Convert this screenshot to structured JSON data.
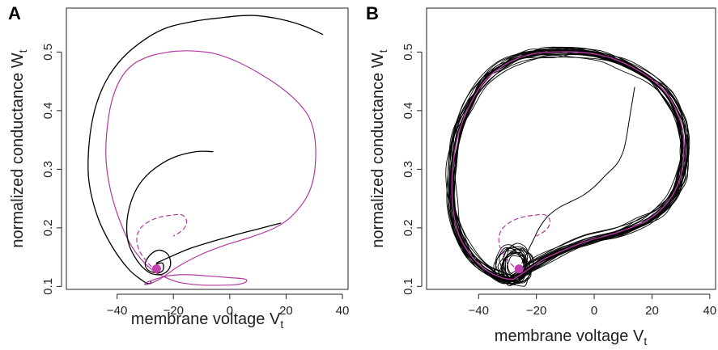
{
  "chart_data": [
    {
      "type": "line",
      "panel_label": "A",
      "xlabel": "membrane voltage V",
      "xlabel_sub": "t",
      "ylabel": "normalized conductance W",
      "ylabel_sub": "t",
      "xlim": [
        -58,
        42
      ],
      "ylim": [
        0.095,
        0.575
      ],
      "xticks": [
        -40,
        -20,
        0,
        20,
        40
      ],
      "yticks": [
        0.1,
        0.2,
        0.3,
        0.4,
        0.5
      ],
      "xtick_labels": [
        "−40",
        "−20",
        "0",
        "20",
        "40"
      ],
      "ytick_labels": [
        "0.1",
        "0.2",
        "0.3",
        "0.4",
        "0.5"
      ],
      "colors": {
        "trajectory": "#000000",
        "limit_cycle": "#b03aa0",
        "fixed_point": "#c040b0"
      },
      "fixed_point": {
        "x": -26,
        "y": 0.13
      },
      "series": [
        {
          "style": "solid",
          "color": "#000000",
          "x": [
            33,
            26,
            18,
            10,
            4,
            -4,
            -12,
            -22,
            -30,
            -38,
            -44,
            -48,
            -50,
            -50,
            -47,
            -42,
            -36,
            -31,
            -29,
            -28,
            -28
          ],
          "y": [
            0.53,
            0.545,
            0.556,
            0.562,
            0.562,
            0.558,
            0.553,
            0.542,
            0.522,
            0.49,
            0.45,
            0.4,
            0.34,
            0.28,
            0.22,
            0.17,
            0.13,
            0.11,
            0.105,
            0.106,
            0.108
          ]
        },
        {
          "style": "solid",
          "color": "#b03aa0",
          "x": [
            -28,
            -24,
            -18,
            -10,
            -2,
            8,
            16,
            22,
            27,
            29.5,
            30.5,
            30,
            28,
            24,
            18,
            10,
            2,
            -6,
            -14,
            -20,
            -24,
            -27,
            -30,
            -34,
            -38,
            -41,
            -43,
            -44,
            -43,
            -40,
            -35,
            -28,
            -20,
            -12,
            -4,
            2,
            5,
            6,
            5,
            0,
            -8,
            -14,
            -18,
            -22,
            -26,
            -29,
            -30,
            -30,
            -28
          ],
          "y": [
            0.105,
            0.115,
            0.135,
            0.155,
            0.17,
            0.185,
            0.2,
            0.22,
            0.25,
            0.28,
            0.32,
            0.36,
            0.39,
            0.415,
            0.44,
            0.465,
            0.485,
            0.498,
            0.502,
            0.501,
            0.498,
            0.495,
            0.49,
            0.48,
            0.46,
            0.43,
            0.39,
            0.33,
            0.28,
            0.225,
            0.17,
            0.13,
            0.11,
            0.103,
            0.102,
            0.103,
            0.106,
            0.11,
            0.113,
            0.115,
            0.118,
            0.12,
            0.12,
            0.118,
            0.113,
            0.108,
            0.105,
            0.103,
            0.105
          ]
        },
        {
          "style": "solid",
          "color": "#000000",
          "x": [
            -6,
            -12,
            -20,
            -27,
            -32,
            -35,
            -36.5,
            -36,
            -33,
            -29,
            -25,
            -22,
            -21,
            -22,
            -25,
            -28,
            -30,
            -29,
            -26,
            -24,
            -23.5,
            -24,
            -26
          ],
          "y": [
            0.33,
            0.33,
            0.32,
            0.3,
            0.275,
            0.245,
            0.21,
            0.175,
            0.145,
            0.125,
            0.12,
            0.127,
            0.14,
            0.155,
            0.162,
            0.155,
            0.14,
            0.128,
            0.123,
            0.126,
            0.133,
            0.14,
            0.138
          ]
        },
        {
          "style": "dashed",
          "color": "#b03aa0",
          "x": [
            -26,
            -29,
            -32,
            -33,
            -32,
            -29,
            -25,
            -20,
            -17,
            -15.5,
            -15.5,
            -17,
            -20
          ],
          "y": [
            0.125,
            0.14,
            0.16,
            0.18,
            0.197,
            0.21,
            0.218,
            0.222,
            0.222,
            0.215,
            0.205,
            0.195,
            0.186
          ]
        },
        {
          "style": "solid",
          "color": "#000000",
          "x": [
            -26,
            -20,
            -14,
            -6,
            2,
            10,
            18
          ],
          "y": [
            0.14,
            0.153,
            0.165,
            0.177,
            0.188,
            0.198,
            0.208
          ]
        }
      ]
    },
    {
      "type": "line",
      "panel_label": "B",
      "xlabel": "membrane voltage V",
      "xlabel_sub": "t",
      "ylabel": "normalized conductance W",
      "ylabel_sub": "t",
      "xlim": [
        -58,
        42
      ],
      "ylim": [
        0.095,
        0.575
      ],
      "xticks": [
        -40,
        -20,
        0,
        20,
        40
      ],
      "yticks": [
        0.1,
        0.2,
        0.3,
        0.4,
        0.5
      ],
      "xtick_labels": [
        "−40",
        "−20",
        "0",
        "20",
        "40"
      ],
      "ytick_labels": [
        "0.1",
        "0.2",
        "0.3",
        "0.4",
        "0.5"
      ],
      "colors": {
        "trajectory": "#000000",
        "limit_cycle": "#b03aa0",
        "fixed_point": "#c040b0"
      },
      "fixed_point": {
        "x": -26,
        "y": 0.13
      },
      "noisy_cycles": 24,
      "limit_cycle": {
        "x": [
          -28,
          -24,
          -18,
          -10,
          -2,
          8,
          16,
          22,
          27,
          30,
          31,
          30.5,
          28,
          24,
          18,
          10,
          2,
          -6,
          -14,
          -20,
          -26,
          -32,
          -38,
          -43,
          -47,
          -49,
          -49,
          -47,
          -43,
          -38,
          -32,
          -28
        ],
        "y": [
          0.112,
          0.125,
          0.145,
          0.163,
          0.178,
          0.192,
          0.207,
          0.226,
          0.255,
          0.29,
          0.33,
          0.37,
          0.405,
          0.435,
          0.46,
          0.482,
          0.495,
          0.5,
          0.5,
          0.498,
          0.49,
          0.475,
          0.45,
          0.41,
          0.36,
          0.3,
          0.24,
          0.19,
          0.155,
          0.13,
          0.115,
          0.112
        ]
      },
      "excursion": {
        "x": [
          14,
          13,
          12,
          11,
          10,
          8,
          4,
          0,
          -4,
          -8,
          -12,
          -16,
          -19,
          -21,
          -23,
          -25
        ],
        "y": [
          0.44,
          0.41,
          0.38,
          0.35,
          0.33,
          0.31,
          0.29,
          0.27,
          0.255,
          0.245,
          0.235,
          0.22,
          0.2,
          0.18,
          0.16,
          0.14
        ]
      },
      "dashed": {
        "x": [
          -26,
          -29,
          -32,
          -33,
          -32,
          -29,
          -25,
          -20,
          -17,
          -15.5,
          -15.5,
          -17,
          -20
        ],
        "y": [
          0.125,
          0.14,
          0.16,
          0.18,
          0.197,
          0.21,
          0.218,
          0.222,
          0.222,
          0.215,
          0.205,
          0.195,
          0.186
        ]
      }
    }
  ]
}
